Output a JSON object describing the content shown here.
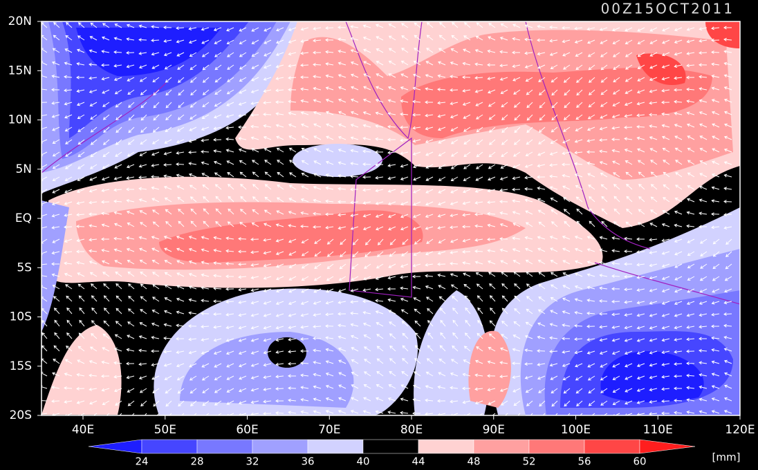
{
  "title": "00Z15OCT2011",
  "lon_labels": [
    "40E",
    "50E",
    "60E",
    "70E",
    "80E",
    "90E",
    "100E",
    "110E",
    "120E"
  ],
  "lat_labels": [
    "20N",
    "15N",
    "10N",
    "5N",
    "EQ",
    "5S",
    "10S",
    "15S",
    "20S"
  ],
  "colorbar": {
    "levels": [
      24,
      28,
      32,
      36,
      40,
      44,
      48,
      52,
      56,
      60
    ],
    "colors": [
      "#1e1eff",
      "#4646ff",
      "#7878ff",
      "#a0a0ff",
      "#d2d2ff",
      "#000000",
      "#ffd2d2",
      "#ffa0a0",
      "#ff7878",
      "#ff4646",
      "#ff1e1e"
    ],
    "unit": "[mm]"
  }
}
